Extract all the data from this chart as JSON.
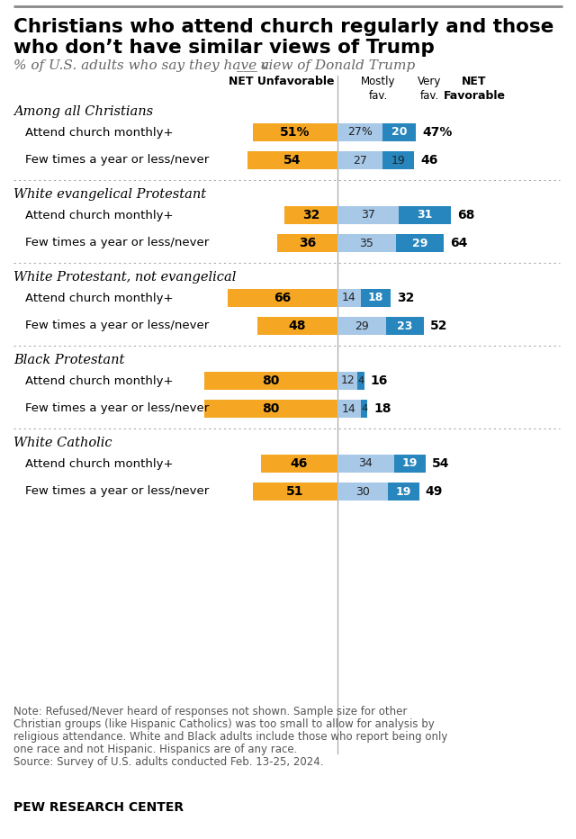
{
  "title_line1": "Christians who attend church regularly and those",
  "title_line2": "who don’t have similar views of Trump",
  "subtitle_pre": "% of U.S. adults who say they have a",
  "subtitle_blank": "___",
  "subtitle_post": "view of Donald Trump",
  "note": "Note: Refused/Never heard of responses not shown. Sample size for other\nChristian groups (like Hispanic Catholics) was too small to allow for analysis by\nreligious attendance. White and Black adults include those who report being only\none race and not Hispanic. Hispanics are of any race.\nSource: Survey of U.S. adults conducted Feb. 13-25, 2024.",
  "footer": "PEW RESEARCH CENTER",
  "color_unfav": "#F5A623",
  "color_mostly_fav": "#A8C8E8",
  "color_very_fav": "#2786BE",
  "groups": [
    {
      "group_label": "Among all Christians",
      "rows": [
        {
          "label": "Attend church monthly+",
          "unfav": 51,
          "mostly_fav": 27,
          "very_fav": 20,
          "net_unfav": "51%",
          "net_fav": "47%",
          "mf_label": "27%",
          "vf_white": true
        },
        {
          "label": "Few times a year or less/never",
          "unfav": 54,
          "mostly_fav": 27,
          "very_fav": 19,
          "net_unfav": "54",
          "net_fav": "46",
          "mf_label": "27",
          "vf_white": false
        }
      ]
    },
    {
      "group_label": "White evangelical Protestant",
      "rows": [
        {
          "label": "Attend church monthly+",
          "unfav": 32,
          "mostly_fav": 37,
          "very_fav": 31,
          "net_unfav": "32",
          "net_fav": "68",
          "mf_label": "37",
          "vf_white": true
        },
        {
          "label": "Few times a year or less/never",
          "unfav": 36,
          "mostly_fav": 35,
          "very_fav": 29,
          "net_unfav": "36",
          "net_fav": "64",
          "mf_label": "35",
          "vf_white": true
        }
      ]
    },
    {
      "group_label": "White Protestant, not evangelical",
      "rows": [
        {
          "label": "Attend church monthly+",
          "unfav": 66,
          "mostly_fav": 14,
          "very_fav": 18,
          "net_unfav": "66",
          "net_fav": "32",
          "mf_label": "14",
          "vf_white": true
        },
        {
          "label": "Few times a year or less/never",
          "unfav": 48,
          "mostly_fav": 29,
          "very_fav": 23,
          "net_unfav": "48",
          "net_fav": "52",
          "mf_label": "29",
          "vf_white": true
        }
      ]
    },
    {
      "group_label": "Black Protestant",
      "rows": [
        {
          "label": "Attend church monthly+",
          "unfav": 80,
          "mostly_fav": 12,
          "very_fav": 4,
          "net_unfav": "80",
          "net_fav": "16",
          "mf_label": "12",
          "vf_white": false
        },
        {
          "label": "Few times a year or less/never",
          "unfav": 80,
          "mostly_fav": 14,
          "very_fav": 4,
          "net_unfav": "80",
          "net_fav": "18",
          "mf_label": "14",
          "vf_white": false
        }
      ]
    },
    {
      "group_label": "White Catholic",
      "rows": [
        {
          "label": "Attend church monthly+",
          "unfav": 46,
          "mostly_fav": 34,
          "very_fav": 19,
          "net_unfav": "46",
          "net_fav": "54",
          "mf_label": "34",
          "vf_white": true
        },
        {
          "label": "Few times a year or less/never",
          "unfav": 51,
          "mostly_fav": 30,
          "very_fav": 19,
          "net_unfav": "51",
          "net_fav": "49",
          "mf_label": "30",
          "vf_white": true
        }
      ]
    }
  ]
}
